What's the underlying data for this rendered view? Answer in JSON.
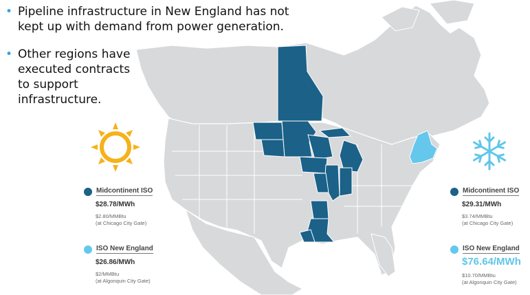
{
  "bullets": [
    {
      "text": "Pipeline infrastructure in New England has not kept up with demand from power generation."
    },
    {
      "text": "Other regions have executed contracts to support infrastructure."
    }
  ],
  "colors": {
    "bullet": "#2fa4dc",
    "midcontinent": "#1b6188",
    "new_england": "#65c7ec",
    "land": "#d7d9db",
    "sun": "#f6b21b",
    "snow": "#5fc6ea"
  },
  "icons": {
    "summer": "sun-icon",
    "winter": "snowflake-icon"
  },
  "summer": {
    "midcontinent": {
      "name": "Midcontinent ISO",
      "price": "$28.78/MWh",
      "gas": "$2.80/MMBtu",
      "gate": "(at Chicago City Gate)"
    },
    "new_england": {
      "name": "ISO New England",
      "price": "$26.86/MWh",
      "gas": "$2/MMBtu",
      "gate": "(at Algonquin City Gate)"
    }
  },
  "winter": {
    "midcontinent": {
      "name": "Midcontinent ISO",
      "price": "$29.31/MWh",
      "gas": "$3.74/MMBtu",
      "gate": "(at Chicago City Gate)"
    },
    "new_england": {
      "name": "ISO New England",
      "price": "$76.64/MWh",
      "gas": "$10.70/MMBtu",
      "gate": "(at Algonquin City Gate)"
    }
  }
}
